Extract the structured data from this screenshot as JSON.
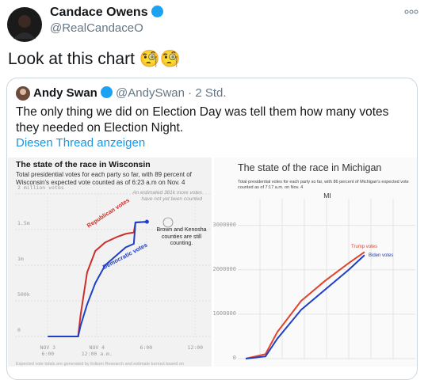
{
  "tweet": {
    "name": "Candace Owens",
    "handle": "@RealCandaceO",
    "text": "Look at this chart 🧐🧐"
  },
  "quote": {
    "name": "Andy Swan",
    "handle": "@AndySwan",
    "time": "· 2 Std.",
    "text": "The only thing we did on Election Day was tell them how many votes they needed on Election Night.",
    "link": "Diesen Thread anzeigen"
  },
  "chart_data": [
    {
      "type": "line",
      "title": "The state of the race in Wisconsin",
      "subtitle": "Total presidential votes for each party so far, with 89 percent of Wisconsin's expected vote counted as of 6:23 a.m on Nov. 4",
      "x": [
        18,
        21.7,
        22,
        22.8,
        23.8,
        25,
        26.5,
        27.5,
        28.5,
        28.7,
        30.1
      ],
      "series": [
        {
          "name": "Republican votes",
          "color": "#cc2f2a",
          "values": [
            0,
            0,
            300000,
            900000,
            1200000,
            1320000,
            1400000,
            1440000,
            1460000,
            1600000,
            1610000
          ]
        },
        {
          "name": "Democratic votes",
          "color": "#1f3fc4",
          "values": [
            0,
            0,
            150000,
            450000,
            750000,
            1000000,
            1150000,
            1250000,
            1300000,
            1600000,
            1610000
          ]
        }
      ],
      "xlim": [
        14,
        38
      ],
      "xticks": [
        {
          "value": 18,
          "label": "NOV 3\n6:00"
        },
        {
          "value": 24,
          "label": "NOV 4\n12:00 a.m."
        },
        {
          "value": 30,
          "label": "6:00"
        },
        {
          "value": 36,
          "label": "12:00"
        }
      ],
      "ylim": [
        0,
        2000000
      ],
      "yticks": [
        0,
        {
          "value": 500000,
          "label": "500k"
        },
        {
          "value": 1000000,
          "label": "1m"
        },
        {
          "value": 1500000,
          "label": "1.5m"
        },
        {
          "value": 2000000,
          "label": "2 million votes"
        }
      ],
      "annotations": [
        "An estimated 381k more votes have not yet been counted",
        "Brown and Kenosha counties are still counting."
      ],
      "footnote": "Expected vote totals are generated by Edison Research and estimate turnout based on"
    },
    {
      "type": "line",
      "title": "The state of the race in Michigan",
      "subtitle": "Total presidential votes for each party so far, with 86 percent of Michigan's expected vote counted as of 7:17 a.m. on Nov. 4",
      "panel": "MI",
      "x": [
        4.5,
        15.6,
        22.3,
        35.7,
        49.1,
        62.5,
        71.4
      ],
      "series": [
        {
          "name": "Trump votes",
          "color": "#e0442c",
          "values": [
            0,
            100000,
            600000,
            1300000,
            1750000,
            2150000,
            2400000
          ]
        },
        {
          "name": "Biden votes",
          "color": "#1f3fc4",
          "values": [
            0,
            50000,
            450000,
            1100000,
            1550000,
            2000000,
            2330000
          ]
        }
      ],
      "xlim": [
        0,
        100
      ],
      "ylim": [
        0,
        3600000
      ],
      "yticks": [
        0,
        1000000,
        2000000,
        3000000
      ]
    }
  ]
}
